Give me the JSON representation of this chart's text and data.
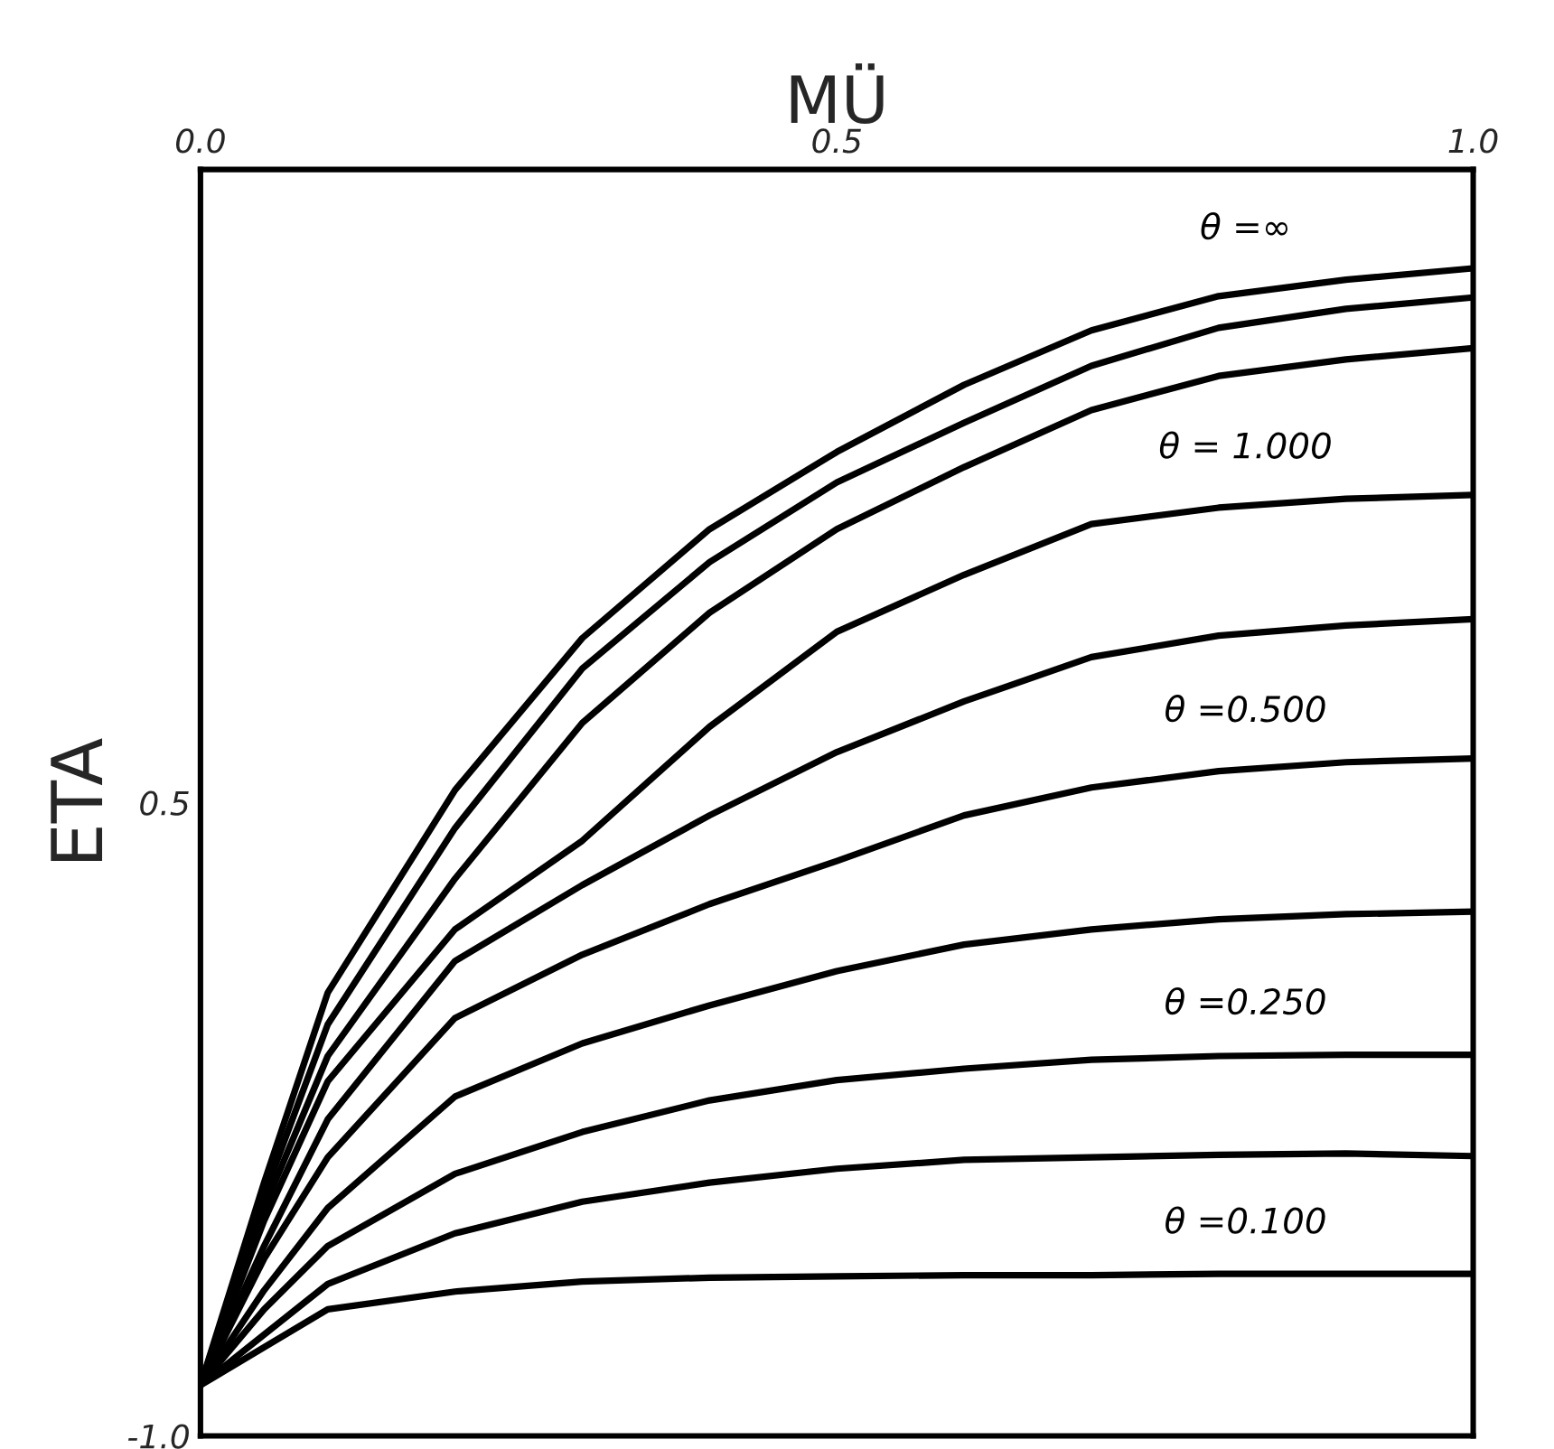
{
  "chart_data": {
    "type": "line",
    "xlabel": "MÜ",
    "ylabel": "ETA",
    "x": [
      0.0,
      0.05,
      0.1,
      0.2,
      0.3,
      0.4,
      0.5,
      0.6,
      0.7,
      0.8,
      0.9,
      1.0
    ],
    "xlim": [
      0.0,
      1.0
    ],
    "xticks": [
      {
        "value": 0.0,
        "label": "0.0"
      },
      0.5,
      {
        "value": 1.0,
        "label": "1.0"
      }
    ],
    "ylim": [
      -1.0,
      0.0
    ],
    "yticks": [
      {
        "value": -1.0,
        "label": "-1.0"
      },
      {
        "value": -0.5,
        "label": "0.5"
      }
    ],
    "grid": false,
    "marker": "none",
    "line_style": "solid",
    "series": [
      {
        "name": "θ =∞",
        "color": "#000000",
        "values": [
          -0.96,
          -0.8,
          -0.65,
          -0.49,
          -0.37,
          -0.284,
          -0.223,
          -0.17,
          -0.127,
          -0.1,
          -0.087,
          -0.078
        ]
      },
      {
        "color": "#000000",
        "values": [
          -0.96,
          -0.81,
          -0.675,
          -0.52,
          -0.394,
          -0.31,
          -0.247,
          -0.2,
          -0.155,
          -0.125,
          -0.11,
          -0.101
        ]
      },
      {
        "color": "#000000",
        "values": [
          -0.96,
          -0.82,
          -0.7,
          -0.56,
          -0.437,
          -0.35,
          -0.284,
          -0.235,
          -0.19,
          -0.163,
          -0.15,
          -0.141
        ]
      },
      {
        "name": "θ = 1.000",
        "color": "#000000",
        "values": [
          -0.96,
          -0.83,
          -0.72,
          -0.6,
          -0.53,
          -0.44,
          -0.365,
          -0.32,
          -0.28,
          -0.267,
          -0.26,
          -0.257
        ]
      },
      {
        "color": "#000000",
        "values": [
          -0.96,
          -0.85,
          -0.75,
          -0.625,
          -0.565,
          -0.51,
          -0.46,
          -0.42,
          -0.385,
          -0.368,
          -0.36,
          -0.355
        ]
      },
      {
        "name": "θ =0.500",
        "color": "#000000",
        "values": [
          -0.96,
          -0.86,
          -0.78,
          -0.67,
          -0.62,
          -0.58,
          -0.546,
          -0.51,
          -0.488,
          -0.475,
          -0.468,
          -0.465
        ]
      },
      {
        "color": "#000000",
        "values": [
          -0.96,
          -0.885,
          -0.82,
          -0.732,
          -0.69,
          -0.66,
          -0.633,
          -0.612,
          -0.6,
          -0.592,
          -0.588,
          -0.586
        ]
      },
      {
        "name": "θ =0.250",
        "color": "#000000",
        "values": [
          -0.96,
          -0.9,
          -0.85,
          -0.793,
          -0.76,
          -0.735,
          -0.719,
          -0.71,
          -0.703,
          -0.7,
          -0.699,
          -0.699
        ]
      },
      {
        "color": "#000000",
        "values": [
          -0.96,
          -0.92,
          -0.88,
          -0.84,
          -0.815,
          -0.8,
          -0.789,
          -0.782,
          -0.78,
          -0.778,
          -0.777,
          -0.779
        ]
      },
      {
        "name": "θ =0.100",
        "color": "#000000",
        "values": [
          -0.96,
          -0.93,
          -0.9,
          -0.886,
          -0.878,
          -0.875,
          -0.874,
          -0.873,
          -0.873,
          -0.872,
          -0.872,
          -0.872
        ]
      }
    ]
  }
}
